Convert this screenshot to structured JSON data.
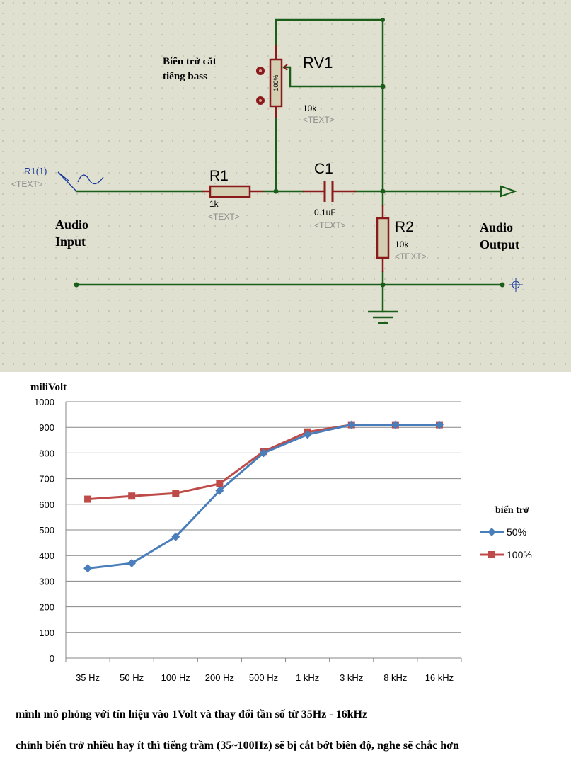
{
  "schematic": {
    "colors": {
      "background": "#e0e0d1",
      "wire": "#1a5e1a",
      "component": "#8b1a1a",
      "component_fill": "#d4cfb2",
      "grid_dot": "#b4b49c",
      "generator": "#1a3a9a",
      "placeholder": "#8c8c8c"
    },
    "annotation": [
      "Biến trở cắt",
      "tiếng bass"
    ],
    "rv1": {
      "ref": "RV1",
      "value": "10k",
      "text": "<TEXT>",
      "wiper": "100%"
    },
    "r1": {
      "ref": "R1",
      "value": "1k",
      "text": "<TEXT>"
    },
    "c1": {
      "ref": "C1",
      "value": "0.1uF",
      "text": "<TEXT>"
    },
    "r2": {
      "ref": "R2",
      "value": "10k",
      "text": "<TEXT>"
    },
    "source": {
      "ref": "R1(1)",
      "text": "<TEXT>"
    },
    "input_label": [
      "Audio",
      "Input"
    ],
    "output_label": [
      "Audio",
      "Output"
    ]
  },
  "chart_data": {
    "type": "line",
    "ylabel": "miliVolt",
    "categories": [
      "35 Hz",
      "50 Hz",
      "100 Hz",
      "200 Hz",
      "500 Hz",
      "1 kHz",
      "3 kHz",
      "8 kHz",
      "16 kHz"
    ],
    "ylim": [
      0,
      1000
    ],
    "yticks": [
      0,
      100,
      200,
      300,
      400,
      500,
      600,
      700,
      800,
      900,
      1000
    ],
    "grid": "horizontal",
    "legend_title": "biến trở",
    "legend_position": "right",
    "series": [
      {
        "name": "50%",
        "color": "#4a7ebb",
        "marker": "diamond",
        "values": [
          350,
          370,
          473,
          653,
          800,
          872,
          910,
          910,
          910
        ]
      },
      {
        "name": "100%",
        "color": "#be4b48",
        "marker": "square",
        "values": [
          620,
          632,
          643,
          680,
          806,
          882,
          910,
          910,
          910
        ]
      }
    ]
  },
  "notes": [
    "mình mô phỏng với tín hiệu vào 1Volt và thay đổi tần số từ 35Hz - 16kHz",
    "chỉnh biến trở nhiều hay ít thì tiếng trầm (35~100Hz) sẽ bị cắt bớt biên độ, nghe sẽ chắc hơn"
  ]
}
